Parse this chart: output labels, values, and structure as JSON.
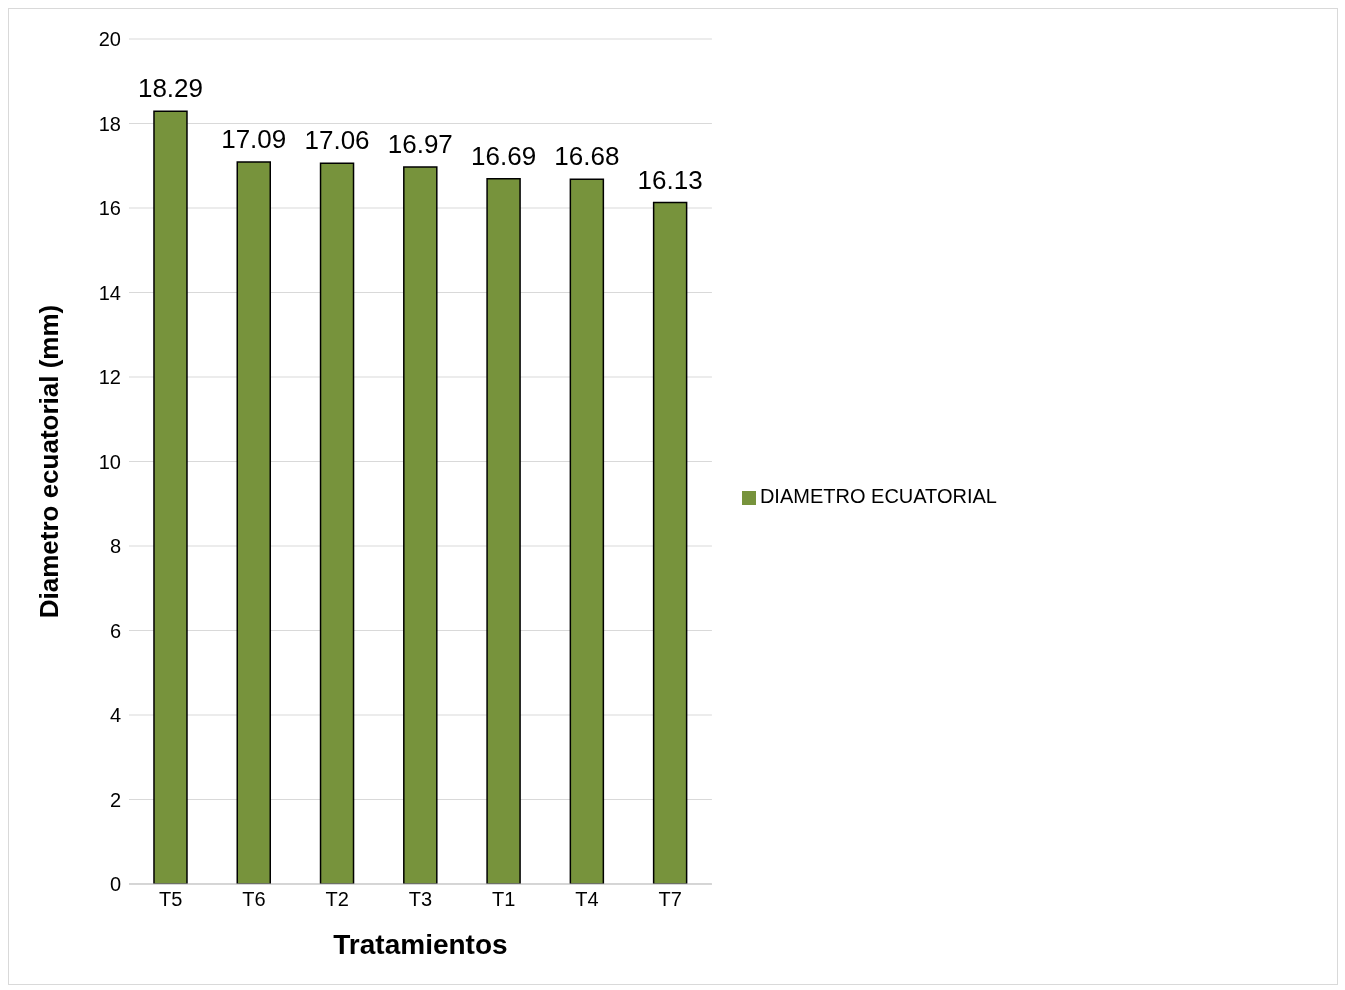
{
  "chart_data": {
    "type": "bar",
    "xlabel": "Tratamientos",
    "ylabel": "Diametro ecuatorial (mm)",
    "categories": [
      "T5",
      "T6",
      "T2",
      "T3",
      "T1",
      "T4",
      "T7"
    ],
    "series": [
      {
        "name": "DIAMETRO ECUATORIAL",
        "color": "#77933c",
        "values": [
          18.29,
          17.09,
          17.06,
          16.97,
          16.69,
          16.68,
          16.13
        ]
      }
    ],
    "ylim": [
      0,
      20
    ],
    "yticks": [
      0,
      2,
      4,
      6,
      8,
      10,
      12,
      14,
      16,
      18,
      20
    ],
    "grid": "y",
    "legend": "right",
    "data_labels": true
  }
}
